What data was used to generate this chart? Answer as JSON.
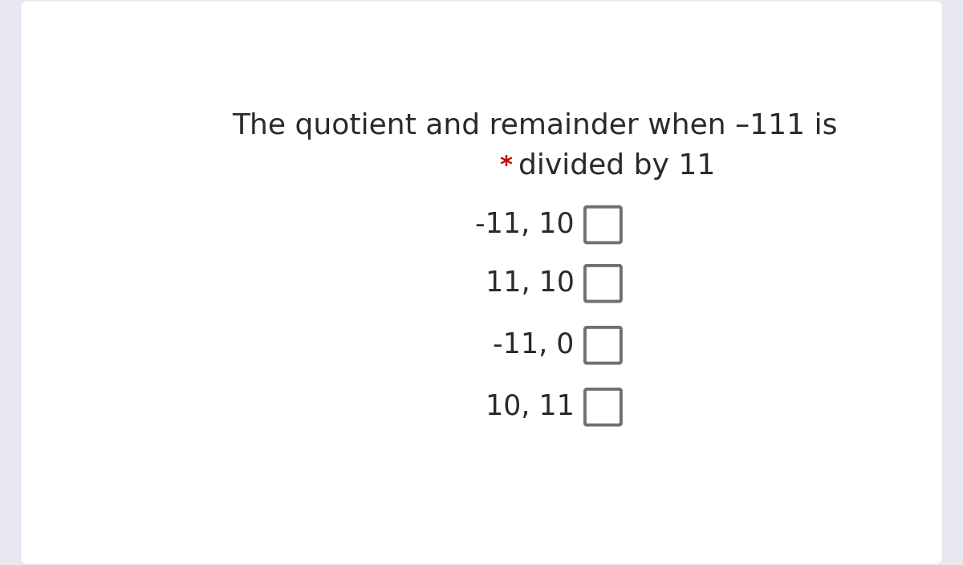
{
  "title_line1": "The quotient and remainder when –111 is",
  "title_line2": "divided by 11",
  "asterisk": "*",
  "options": [
    "-11, 10",
    "11, 10",
    "-11, 0",
    "10, 11"
  ],
  "bg_color": "#e8e8f0",
  "card_color": "#ffffff",
  "text_color": "#2a2a2a",
  "asterisk_color": "#cc0000",
  "checkbox_border_color": "#707070",
  "title_fontsize": 26,
  "option_fontsize": 25,
  "asterisk_fontsize": 22
}
